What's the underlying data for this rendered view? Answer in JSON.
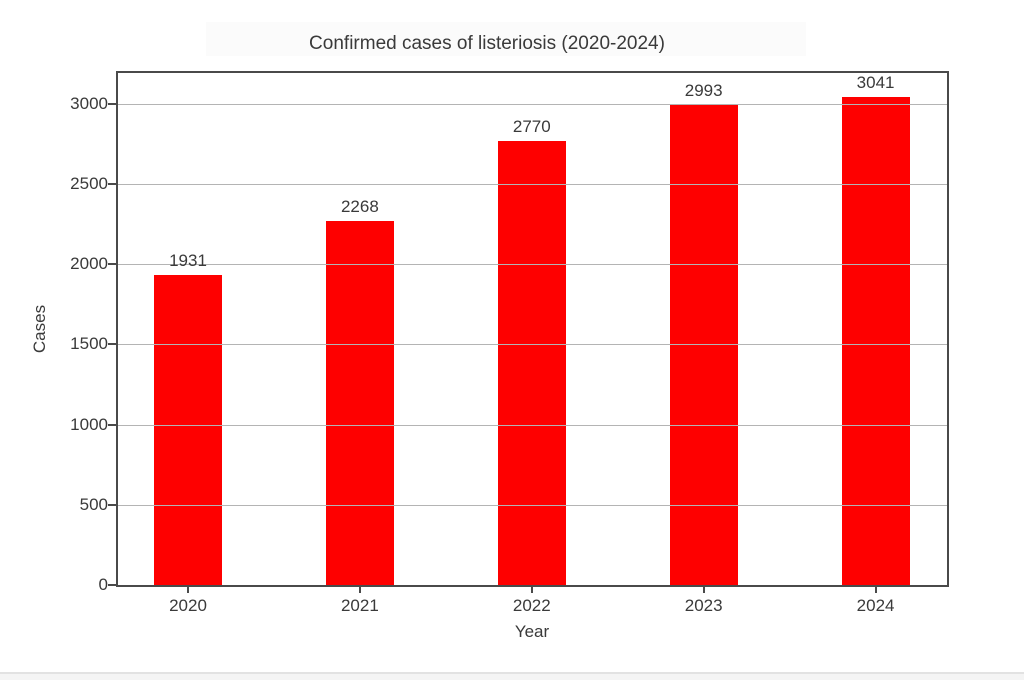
{
  "chart_data": {
    "type": "bar",
    "title": "Confirmed cases of listeriosis (2020-2024)",
    "categories": [
      "2020",
      "2021",
      "2022",
      "2023",
      "2024"
    ],
    "values": [
      1931,
      2268,
      2770,
      2993,
      3041
    ],
    "bar_labels": [
      "1931",
      "2268",
      "2770",
      "2993",
      "3041"
    ],
    "xlabel": "Year",
    "ylabel": "Cases",
    "yticks": [
      0,
      500,
      1000,
      1500,
      2000,
      2500,
      3000
    ],
    "ylim": [
      0,
      3193
    ],
    "grid": "horizontal",
    "grid_above_bars": true,
    "legend": "none",
    "colors": {
      "bar": "#fe0000",
      "gridline": "#b4b4b4",
      "axis": "#4a4a4a",
      "text": "#3a3a3a",
      "background": "#ffffff",
      "bottom_divider": "#e2e2e2"
    }
  }
}
